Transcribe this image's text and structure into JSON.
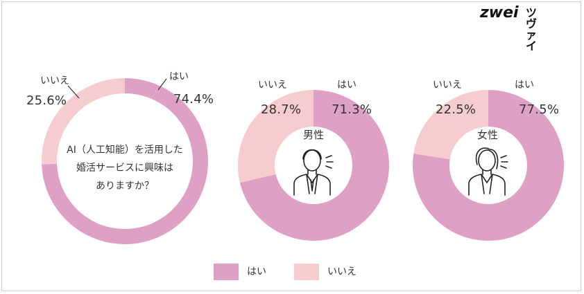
{
  "brand": {
    "logo_latin": "zwei",
    "logo_kana": "ツヴァイ"
  },
  "colors": {
    "yes": "#dfa0c6",
    "no": "#f7cccf"
  },
  "chart_data": [
    {
      "type": "pie",
      "question": "AI（人工知能）を活用した婚活サービスに興味はありますか？",
      "question_lines": [
        "AI（人工知能）を活用した",
        "婚活サービスに興味は",
        "ありますか？"
      ],
      "categories": [
        "はい",
        "いいえ"
      ],
      "values": [
        74.4,
        25.6
      ],
      "value_labels": [
        "74.4%",
        "25.6%"
      ],
      "legend_position": "bottom"
    },
    {
      "type": "pie",
      "title": "男性",
      "categories": [
        "はい",
        "いいえ"
      ],
      "values": [
        71.3,
        28.7
      ],
      "value_labels": [
        "71.3%",
        "28.7%"
      ]
    },
    {
      "type": "pie",
      "title": "女性",
      "categories": [
        "はい",
        "いいえ"
      ],
      "values": [
        77.5,
        22.5
      ],
      "value_labels": [
        "77.5%",
        "22.5%"
      ]
    }
  ],
  "legend": [
    {
      "label": "はい",
      "color": "#dfa0c6"
    },
    {
      "label": "いいえ",
      "color": "#f7cccf"
    }
  ],
  "icons": {
    "male": "businessman-icon",
    "female": "businesswoman-icon"
  }
}
